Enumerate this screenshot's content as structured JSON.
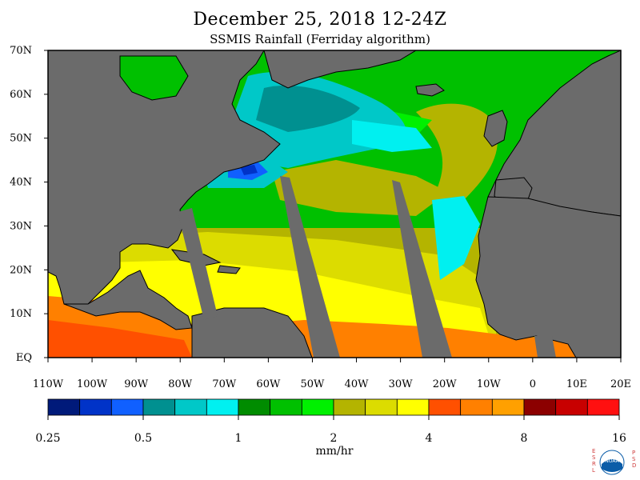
{
  "title": "December 25, 2018 12-24Z",
  "subtitle": "SSMIS Rainfall (Ferriday algorithm)",
  "lat_labels": [
    "70N",
    "60N",
    "50N",
    "40N",
    "30N",
    "20N",
    "10N",
    "EQ"
  ],
  "lon_labels": [
    "110W",
    "100W",
    "90W",
    "80W",
    "70W",
    "60W",
    "50W",
    "40W",
    "30W",
    "20W",
    "10W",
    "0",
    "10E",
    "20E"
  ],
  "colorbar": {
    "colors": [
      "#001a7a",
      "#0033c8",
      "#1060ff",
      "#009090",
      "#00c8c8",
      "#00f0f0",
      "#008c00",
      "#00c000",
      "#00f000",
      "#b4b400",
      "#dcdc00",
      "#ffff00",
      "#ff5000",
      "#ff8000",
      "#ffa000",
      "#8c0000",
      "#c80000",
      "#ff1010"
    ],
    "tick_labels": [
      "0.25",
      "0.5",
      "1",
      "2",
      "4",
      "8",
      "16"
    ],
    "units": "mm/hr"
  },
  "logo": {
    "left_letters": "ESRL",
    "right_letters": "PSD",
    "emblem_text": "NOAA",
    "emblem_color": "#0a5ca8"
  },
  "colors": {
    "land": "#6b6b6b",
    "swath_gap": "#6b6b6b"
  }
}
